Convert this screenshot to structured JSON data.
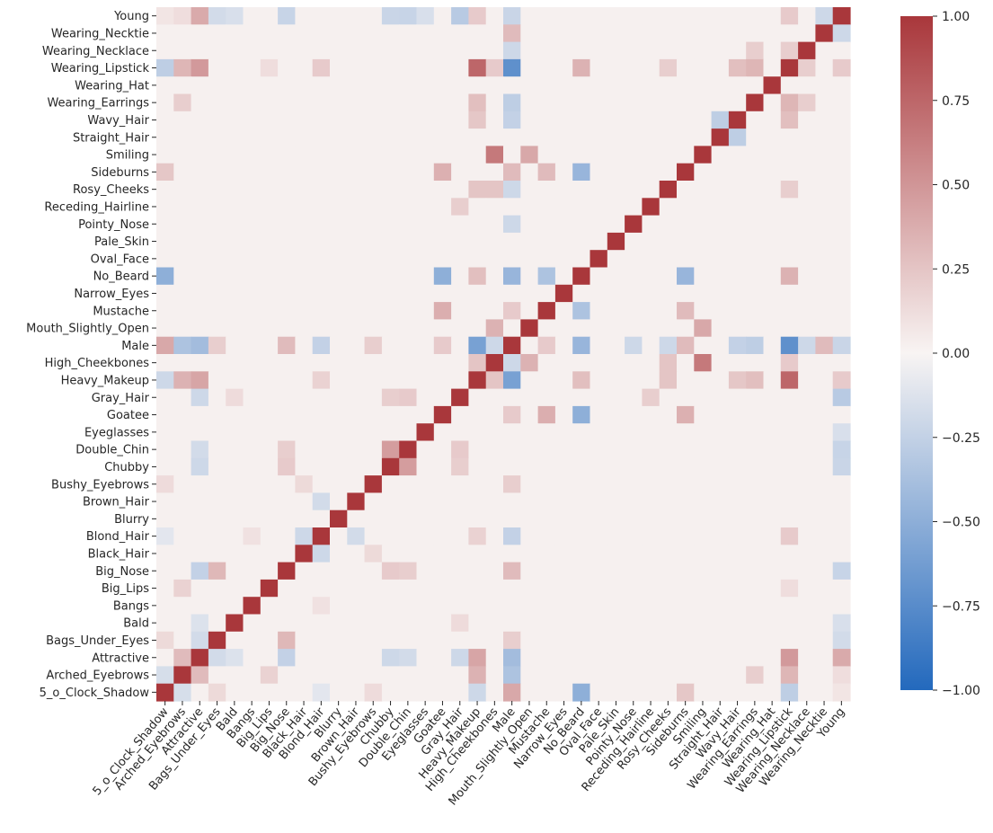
{
  "chart_data": {
    "type": "heatmap",
    "title": "",
    "xlabel": "",
    "ylabel": "",
    "x_labels": [
      "5_o_Clock_Shadow",
      "Arched_Eyebrows",
      "Attractive",
      "Bags_Under_Eyes",
      "Bald",
      "Bangs",
      "Big_Lips",
      "Big_Nose",
      "Black_Hair",
      "Blond_Hair",
      "Blurry",
      "Brown_Hair",
      "Bushy_Eyebrows",
      "Chubby",
      "Double_Chin",
      "Eyeglasses",
      "Goatee",
      "Gray_Hair",
      "Heavy_Makeup",
      "High_Cheekbones",
      "Male",
      "Mouth_Slightly_Open",
      "Mustache",
      "Narrow_Eyes",
      "No_Beard",
      "Oval_Face",
      "Pale_Skin",
      "Pointy_Nose",
      "Receding_Hairline",
      "Rosy_Cheeks",
      "Sideburns",
      "Smiling",
      "Straight_Hair",
      "Wavy_Hair",
      "Wearing_Earrings",
      "Wearing_Hat",
      "Wearing_Lipstick",
      "Wearing_Necklace",
      "Wearing_Necktie",
      "Young"
    ],
    "y_labels": [
      "Young",
      "Wearing_Necktie",
      "Wearing_Necklace",
      "Wearing_Lipstick",
      "Wearing_Hat",
      "Wearing_Earrings",
      "Wavy_Hair",
      "Straight_Hair",
      "Smiling",
      "Sideburns",
      "Rosy_Cheeks",
      "Receding_Hairline",
      "Pointy_Nose",
      "Pale_Skin",
      "Oval_Face",
      "No_Beard",
      "Narrow_Eyes",
      "Mustache",
      "Mouth_Slightly_Open",
      "Male",
      "High_Cheekbones",
      "Heavy_Makeup",
      "Gray_Hair",
      "Goatee",
      "Eyeglasses",
      "Double_Chin",
      "Chubby",
      "Bushy_Eyebrows",
      "Brown_Hair",
      "Blurry",
      "Blond_Hair",
      "Black_Hair",
      "Big_Nose",
      "Big_Lips",
      "Bangs",
      "Bald",
      "Bags_Under_Eyes",
      "Attractive",
      "Arched_Eyebrows",
      "5_o_Clock_Shadow"
    ],
    "correlations": [
      {
        "a": "5_o_Clock_Shadow",
        "b": "Arched_Eyebrows",
        "r": -0.16
      },
      {
        "a": "5_o_Clock_Shadow",
        "b": "Bags_Under_Eyes",
        "r": 0.14
      },
      {
        "a": "5_o_Clock_Shadow",
        "b": "Blond_Hair",
        "r": -0.1
      },
      {
        "a": "5_o_Clock_Shadow",
        "b": "Bushy_Eyebrows",
        "r": 0.13
      },
      {
        "a": "5_o_Clock_Shadow",
        "b": "Heavy_Makeup",
        "r": -0.2
      },
      {
        "a": "5_o_Clock_Shadow",
        "b": "Male",
        "r": 0.4
      },
      {
        "a": "5_o_Clock_Shadow",
        "b": "No_Beard",
        "r": -0.5
      },
      {
        "a": "5_o_Clock_Shadow",
        "b": "Sideburns",
        "r": 0.24
      },
      {
        "a": "5_o_Clock_Shadow",
        "b": "Wearing_Lipstick",
        "r": -0.27
      },
      {
        "a": "5_o_Clock_Shadow",
        "b": "Young",
        "r": 0.08
      },
      {
        "a": "Arched_Eyebrows",
        "b": "Attractive",
        "r": 0.3
      },
      {
        "a": "Arched_Eyebrows",
        "b": "Big_Lips",
        "r": 0.18
      },
      {
        "a": "Arched_Eyebrows",
        "b": "Heavy_Makeup",
        "r": 0.35
      },
      {
        "a": "Arched_Eyebrows",
        "b": "Male",
        "r": -0.35
      },
      {
        "a": "Arched_Eyebrows",
        "b": "Wearing_Lipstick",
        "r": 0.33
      },
      {
        "a": "Arched_Eyebrows",
        "b": "Wearing_Earrings",
        "r": 0.2
      },
      {
        "a": "Arched_Eyebrows",
        "b": "Young",
        "r": 0.12
      },
      {
        "a": "Attractive",
        "b": "Big_Nose",
        "r": -0.25
      },
      {
        "a": "Attractive",
        "b": "Bags_Under_Eyes",
        "r": -0.18
      },
      {
        "a": "Attractive",
        "b": "Chubby",
        "r": -0.2
      },
      {
        "a": "Attractive",
        "b": "Double_Chin",
        "r": -0.18
      },
      {
        "a": "Attractive",
        "b": "Heavy_Makeup",
        "r": 0.42
      },
      {
        "a": "Attractive",
        "b": "Male",
        "r": -0.4
      },
      {
        "a": "Attractive",
        "b": "Wearing_Lipstick",
        "r": 0.48
      },
      {
        "a": "Attractive",
        "b": "Young",
        "r": 0.39
      },
      {
        "a": "Attractive",
        "b": "Gray_Hair",
        "r": -0.2
      },
      {
        "a": "Attractive",
        "b": "Bald",
        "r": -0.13
      },
      {
        "a": "Bags_Under_Eyes",
        "b": "Big_Nose",
        "r": 0.32
      },
      {
        "a": "Bags_Under_Eyes",
        "b": "Male",
        "r": 0.2
      },
      {
        "a": "Bags_Under_Eyes",
        "b": "Young",
        "r": -0.18
      },
      {
        "a": "Bald",
        "b": "Gray_Hair",
        "r": 0.13
      },
      {
        "a": "Bald",
        "b": "Young",
        "r": -0.15
      },
      {
        "a": "Bangs",
        "b": "Blond_Hair",
        "r": 0.1
      },
      {
        "a": "Big_Lips",
        "b": "Wearing_Lipstick",
        "r": 0.12
      },
      {
        "a": "Big_Nose",
        "b": "Male",
        "r": 0.3
      },
      {
        "a": "Big_Nose",
        "b": "Chubby",
        "r": 0.22
      },
      {
        "a": "Big_Nose",
        "b": "Double_Chin",
        "r": 0.2
      },
      {
        "a": "Big_Nose",
        "b": "Young",
        "r": -0.23
      },
      {
        "a": "Black_Hair",
        "b": "Blond_Hair",
        "r": -0.2
      },
      {
        "a": "Black_Hair",
        "b": "Bushy_Eyebrows",
        "r": 0.14
      },
      {
        "a": "Blond_Hair",
        "b": "Brown_Hair",
        "r": -0.18
      },
      {
        "a": "Blond_Hair",
        "b": "Heavy_Makeup",
        "r": 0.18
      },
      {
        "a": "Blond_Hair",
        "b": "Male",
        "r": -0.25
      },
      {
        "a": "Blond_Hair",
        "b": "Wearing_Lipstick",
        "r": 0.22
      },
      {
        "a": "Bushy_Eyebrows",
        "b": "Male",
        "r": 0.2
      },
      {
        "a": "Chubby",
        "b": "Double_Chin",
        "r": 0.46
      },
      {
        "a": "Chubby",
        "b": "Gray_Hair",
        "r": 0.2
      },
      {
        "a": "Chubby",
        "b": "Young",
        "r": -0.22
      },
      {
        "a": "Double_Chin",
        "b": "Gray_Hair",
        "r": 0.22
      },
      {
        "a": "Double_Chin",
        "b": "Young",
        "r": -0.23
      },
      {
        "a": "Eyeglasses",
        "b": "Young",
        "r": -0.15
      },
      {
        "a": "Goatee",
        "b": "Male",
        "r": 0.22
      },
      {
        "a": "Goatee",
        "b": "Mustache",
        "r": 0.37
      },
      {
        "a": "Goatee",
        "b": "No_Beard",
        "r": -0.5
      },
      {
        "a": "Goatee",
        "b": "Sideburns",
        "r": 0.36
      },
      {
        "a": "Gray_Hair",
        "b": "Young",
        "r": -0.3
      },
      {
        "a": "Gray_Hair",
        "b": "Receding_Hairline",
        "r": 0.2
      },
      {
        "a": "Heavy_Makeup",
        "b": "High_Cheekbones",
        "r": 0.25
      },
      {
        "a": "Heavy_Makeup",
        "b": "Male",
        "r": -0.6
      },
      {
        "a": "Heavy_Makeup",
        "b": "Wearing_Lipstick",
        "r": 0.75
      },
      {
        "a": "Heavy_Makeup",
        "b": "Wearing_Earrings",
        "r": 0.28
      },
      {
        "a": "Heavy_Makeup",
        "b": "Wavy_Hair",
        "r": 0.24
      },
      {
        "a": "Heavy_Makeup",
        "b": "No_Beard",
        "r": 0.28
      },
      {
        "a": "Heavy_Makeup",
        "b": "Rosy_Cheeks",
        "r": 0.25
      },
      {
        "a": "Heavy_Makeup",
        "b": "Young",
        "r": 0.22
      },
      {
        "a": "High_Cheekbones",
        "b": "Smiling",
        "r": 0.65
      },
      {
        "a": "High_Cheekbones",
        "b": "Mouth_Slightly_Open",
        "r": 0.35
      },
      {
        "a": "High_Cheekbones",
        "b": "Male",
        "r": -0.2
      },
      {
        "a": "High_Cheekbones",
        "b": "Rosy_Cheeks",
        "r": 0.25
      },
      {
        "a": "High_Cheekbones",
        "b": "Wearing_Lipstick",
        "r": 0.22
      },
      {
        "a": "Male",
        "b": "No_Beard",
        "r": -0.45
      },
      {
        "a": "Male",
        "b": "Wearing_Lipstick",
        "r": -0.72
      },
      {
        "a": "Male",
        "b": "Wearing_Earrings",
        "r": -0.27
      },
      {
        "a": "Male",
        "b": "Wavy_Hair",
        "r": -0.25
      },
      {
        "a": "Male",
        "b": "Wearing_Necklace",
        "r": -0.2
      },
      {
        "a": "Male",
        "b": "Wearing_Necktie",
        "r": 0.3
      },
      {
        "a": "Male",
        "b": "Rosy_Cheeks",
        "r": -0.2
      },
      {
        "a": "Male",
        "b": "Sideburns",
        "r": 0.3
      },
      {
        "a": "Male",
        "b": "Mustache",
        "r": 0.22
      },
      {
        "a": "Male",
        "b": "Pointy_Nose",
        "r": -0.2
      },
      {
        "a": "Male",
        "b": "Young",
        "r": -0.22
      },
      {
        "a": "Mouth_Slightly_Open",
        "b": "Smiling",
        "r": 0.4
      },
      {
        "a": "Mustache",
        "b": "No_Beard",
        "r": -0.35
      },
      {
        "a": "Mustache",
        "b": "Sideburns",
        "r": 0.3
      },
      {
        "a": "No_Beard",
        "b": "Sideburns",
        "r": -0.45
      },
      {
        "a": "No_Beard",
        "b": "Wearing_Lipstick",
        "r": 0.35
      },
      {
        "a": "Rosy_Cheeks",
        "b": "Wearing_Lipstick",
        "r": 0.2
      },
      {
        "a": "Straight_Hair",
        "b": "Wavy_Hair",
        "r": -0.27
      },
      {
        "a": "Wavy_Hair",
        "b": "Wearing_Lipstick",
        "r": 0.28
      },
      {
        "a": "Wearing_Earrings",
        "b": "Wearing_Lipstick",
        "r": 0.33
      },
      {
        "a": "Wearing_Earrings",
        "b": "Wearing_Necklace",
        "r": 0.2
      },
      {
        "a": "Wearing_Lipstick",
        "b": "Wearing_Necklace",
        "r": 0.2
      },
      {
        "a": "Wearing_Lipstick",
        "b": "Young",
        "r": 0.22
      },
      {
        "a": "Wearing_Necktie",
        "b": "Young",
        "r": -0.2
      }
    ],
    "colormap": {
      "name": "vlag",
      "low": "#2369bd",
      "mid": "#f8f4f3",
      "high": "#a9373b"
    },
    "colorbar": {
      "ticks": [
        1.0,
        0.75,
        0.5,
        0.25,
        0.0,
        -0.25,
        -0.5,
        -0.75,
        -1.0
      ],
      "tick_labels": [
        "1.00",
        "0.75",
        "0.50",
        "0.25",
        "0.00",
        "−0.25",
        "−0.50",
        "−0.75",
        "−1.00"
      ],
      "vmin": -1.0,
      "vmax": 1.0
    }
  }
}
